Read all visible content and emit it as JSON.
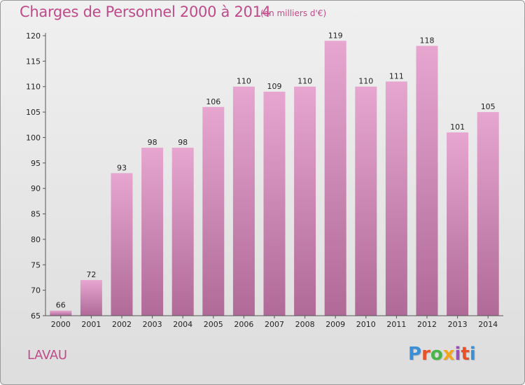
{
  "header": {
    "title": "Charges de Personnel 2000 à 2014",
    "subtitle": "(en milliers d'€)"
  },
  "footer": {
    "commune": "LAVAU",
    "logo": "Proxiti",
    "logo_colors": [
      "#3b8fd6",
      "#e8502a",
      "#49b548",
      "#f3a51d",
      "#9a4fb5",
      "#e8502a",
      "#3b8fd6"
    ]
  },
  "colors": {
    "accent": "#c04a8a",
    "bar_top": "#e6a6d0",
    "bar_bottom": "#b06a98"
  },
  "chart_data": {
    "type": "bar",
    "title": "Charges de Personnel 2000 à 2014",
    "subtitle": "(en milliers d'€)",
    "categories": [
      "2000",
      "2001",
      "2002",
      "2003",
      "2004",
      "2005",
      "2006",
      "2007",
      "2008",
      "2009",
      "2010",
      "2011",
      "2012",
      "2013",
      "2014"
    ],
    "values": [
      66,
      72,
      93,
      98,
      98,
      106,
      110,
      109,
      110,
      119,
      110,
      111,
      118,
      101,
      105
    ],
    "ylim": [
      65,
      120
    ],
    "yticks": [
      65,
      70,
      75,
      80,
      85,
      90,
      95,
      100,
      105,
      110,
      115,
      120
    ],
    "grid": false,
    "data_labels": true
  }
}
